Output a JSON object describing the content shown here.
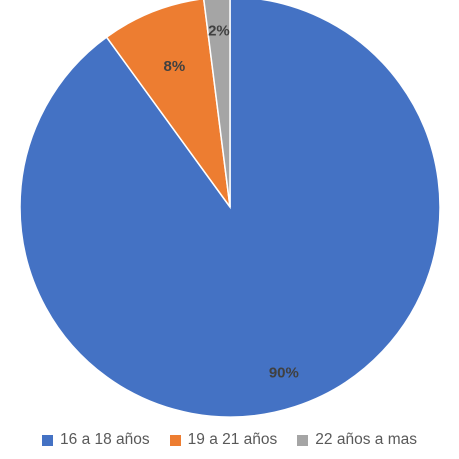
{
  "chart_data": {
    "type": "pie",
    "categories": [
      "16 a 18 años",
      "19 a 21 años",
      "22 años a mas"
    ],
    "values": [
      90,
      8,
      2
    ],
    "data_labels": [
      "90%",
      "8%",
      "2%"
    ],
    "colors": [
      "#4472C4",
      "#ED7D31",
      "#A5A5A5"
    ],
    "legend_position": "bottom"
  }
}
